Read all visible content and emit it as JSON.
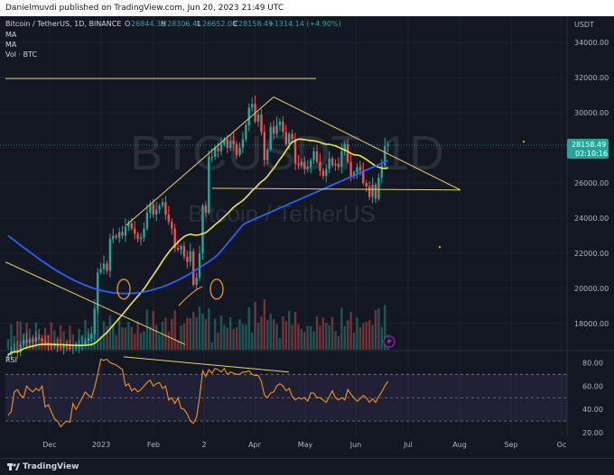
{
  "header": {
    "publisher": "Danielmuvdi published on TradingView.com, Jun 20, 2023 21:49 UTC"
  },
  "legend": {
    "symbol": "Bitcoin / TetherUS, 1D, BINANCE",
    "ohlc_o_label": "O",
    "ohlc_o": "26844.35",
    "ohlc_h_label": "H",
    "ohlc_h": "28306.41",
    "ohlc_l_label": "L",
    "ohlc_l": "26652.00",
    "ohlc_c_label": "C",
    "ohlc_c": "28158.49",
    "change": "+1314.14 (+4.90%)",
    "ma1": "MA",
    "ma2": "MA",
    "vol": "Vol · BTC"
  },
  "watermark": {
    "ticker": "BTCUSDT, 1D",
    "name": "Bitcoin / TetherUS"
  },
  "price_axis": {
    "currency": "USDT",
    "ticks": [
      "34000.00",
      "32000.00",
      "30000.00",
      "28000.00",
      "26000.00",
      "24000.00",
      "22000.00",
      "20000.00",
      "18000.00"
    ],
    "last_price": "28158.49",
    "countdown": "02:10:16"
  },
  "rsi_axis": {
    "label": "RSI",
    "ticks": [
      "80.00",
      "60.00",
      "40.00",
      "20.00"
    ]
  },
  "time_axis": {
    "ticks": [
      "Dec",
      "2023",
      "Feb",
      "2",
      "Apr",
      "May",
      "Jun",
      "Jul",
      "Aug",
      "Sep",
      "Oc"
    ]
  },
  "footer": {
    "brand": "TradingView"
  },
  "colors": {
    "background": "#131722",
    "up": "#26a69a",
    "down": "#ef5350",
    "ma_short": "#f5e642",
    "ma_long": "#2962ff",
    "annotation": "#e8d35a",
    "rsi_line": "#f7931a",
    "rsi_band": "#7e57c2",
    "last_price_bg": "#26a69a"
  },
  "chart_data": {
    "type": "candlestick",
    "price_range": [
      16500,
      35500
    ],
    "rsi_range": [
      17,
      88
    ],
    "dates_start": "2022-11-22",
    "closes": [
      16200,
      16450,
      16500,
      16350,
      16800,
      17050,
      16900,
      17100,
      16950,
      17200,
      17150,
      17000,
      16900,
      16800,
      16700,
      16750,
      16650,
      16600,
      16700,
      16650,
      16550,
      16600,
      16650,
      16700,
      16800,
      17000,
      17150,
      17400,
      18800,
      20900,
      21100,
      21400,
      21000,
      22800,
      23000,
      22900,
      23200,
      23000,
      23500,
      23700,
      23400,
      23100,
      22800,
      22900,
      23400,
      24300,
      24800,
      24200,
      24500,
      24700,
      24900,
      24200,
      23800,
      23400,
      22300,
      22200,
      22400,
      21800,
      21500,
      22100,
      20200,
      20600,
      22000,
      24700,
      24300,
      27500,
      27500,
      28000,
      27800,
      28200,
      28500,
      28000,
      28400,
      28200,
      27600,
      28000,
      28500,
      29300,
      30300,
      30500,
      29500,
      29900,
      28900,
      27300,
      27900,
      29200,
      28800,
      29300,
      29500,
      28900,
      28200,
      28800,
      28500,
      27100,
      27000,
      27200,
      26800,
      26900,
      27300,
      27800,
      27200,
      26700,
      26400,
      26800,
      27400,
      27000,
      27100,
      26900,
      27800,
      28200,
      27200,
      26400,
      26600,
      26900,
      26700,
      26000,
      25800,
      25200,
      25900,
      25100,
      26300,
      27000,
      28100,
      28200
    ],
    "ma50_color_line": "yellow",
    "ma200_color_line": "blue",
    "rsi": [
      35,
      38,
      55,
      57,
      52,
      50,
      60,
      57,
      55,
      58,
      56,
      60,
      42,
      44,
      38,
      32,
      30,
      25,
      28,
      30,
      29,
      45,
      40,
      45,
      50,
      55,
      52,
      50,
      59,
      70,
      83,
      82,
      83,
      80,
      79,
      78,
      76,
      74,
      60,
      62,
      56,
      58,
      55,
      57,
      60,
      63,
      65,
      60,
      62,
      63,
      58,
      60,
      48,
      50,
      45,
      50,
      41,
      40,
      36,
      30,
      28,
      33,
      50,
      73,
      68,
      74,
      71,
      75,
      74,
      72,
      75,
      70,
      72,
      71,
      70,
      70,
      72,
      72,
      73,
      70,
      69,
      69,
      64,
      52,
      50,
      54,
      55,
      60,
      62,
      60,
      56,
      58,
      51,
      48,
      50,
      49,
      50,
      47,
      54,
      54,
      50,
      50,
      48,
      46,
      51,
      56,
      50,
      48,
      50,
      48,
      57,
      53,
      50,
      47,
      49,
      52,
      50,
      46,
      49,
      46,
      51,
      55,
      60,
      64
    ],
    "annotations": [
      "ascending channel top line",
      "descending wedge top line",
      "horizontal support 25700",
      "32000 resistance line",
      "prior downtrend line",
      "circles at 20000 area"
    ]
  }
}
